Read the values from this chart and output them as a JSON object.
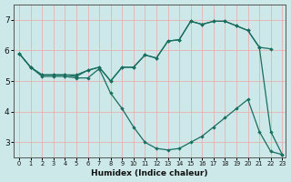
{
  "xlabel": "Humidex (Indice chaleur)",
  "bg_color": "#cce8e8",
  "grid_color": "#e8b0b0",
  "line_color": "#1a6e60",
  "xlim": [
    -0.5,
    23.3
  ],
  "ylim": [
    2.5,
    7.5
  ],
  "yticks": [
    3,
    4,
    5,
    6,
    7
  ],
  "xticks": [
    0,
    1,
    2,
    3,
    4,
    5,
    6,
    7,
    8,
    9,
    10,
    11,
    12,
    13,
    14,
    15,
    16,
    17,
    18,
    19,
    20,
    21,
    22,
    23
  ],
  "line1_x": [
    0,
    1,
    2,
    3,
    4,
    5,
    6,
    7,
    8,
    9,
    10,
    11,
    12,
    13,
    14,
    15,
    16,
    17,
    18,
    19,
    20,
    21,
    22
  ],
  "line1_y": [
    5.9,
    5.45,
    5.2,
    5.2,
    5.2,
    5.15,
    5.35,
    5.45,
    5.0,
    5.45,
    5.45,
    5.85,
    5.75,
    6.3,
    6.35,
    6.95,
    6.85,
    6.95,
    6.95,
    6.8,
    6.65,
    6.1,
    6.05
  ],
  "line2_x": [
    0,
    1,
    2,
    3,
    4,
    5,
    6,
    7,
    8,
    9,
    10,
    11,
    12,
    13,
    14,
    15,
    16,
    17,
    18,
    19,
    20,
    21,
    22,
    23
  ],
  "line2_y": [
    5.9,
    5.45,
    5.15,
    5.15,
    5.15,
    5.1,
    5.1,
    5.4,
    4.6,
    4.1,
    3.5,
    3.0,
    2.8,
    2.75,
    2.8,
    3.0,
    3.2,
    3.5,
    3.8,
    4.1,
    4.4,
    3.35,
    2.7,
    2.6
  ],
  "line3_x": [
    0,
    1,
    2,
    3,
    4,
    5,
    6,
    7,
    8,
    9,
    10,
    11,
    12,
    13,
    14,
    15,
    16,
    17,
    18,
    19,
    20,
    21,
    22,
    23
  ],
  "line3_y": [
    5.9,
    5.45,
    5.2,
    5.2,
    5.2,
    5.2,
    5.35,
    5.45,
    5.0,
    5.45,
    5.45,
    5.85,
    5.75,
    6.3,
    6.35,
    6.95,
    6.85,
    6.95,
    6.95,
    6.8,
    6.65,
    6.1,
    3.35,
    2.6
  ]
}
